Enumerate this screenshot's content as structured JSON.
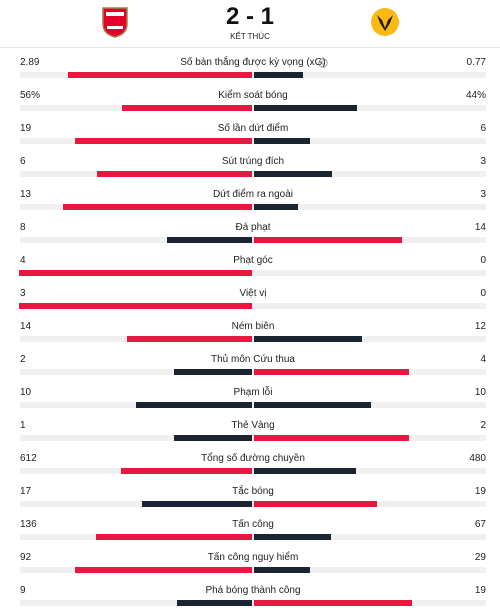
{
  "header": {
    "score": "2 - 1",
    "status": "KẾT THÚC"
  },
  "stats": [
    {
      "label": "Số bàn thắng được kỳ vọng (xG)",
      "home": 2.89,
      "away": 0.77
    },
    {
      "label": "Kiểm soát bóng",
      "home": {
        "value": 56,
        "label": "56%"
      },
      "away": {
        "value": 44,
        "label": "44%"
      }
    },
    {
      "label": "Số lần dứt điểm",
      "home": 19,
      "away": 6
    },
    {
      "label": "Sút trúng đích",
      "home": 6,
      "away": 3
    },
    {
      "label": "Dứt điểm ra ngoài",
      "home": 13,
      "away": 3
    },
    {
      "label": "Đá phạt",
      "home": 8,
      "away": 14
    },
    {
      "label": "Phạt góc",
      "home": 4,
      "away": 0
    },
    {
      "label": "Việt vị",
      "home": 3,
      "away": 0
    },
    {
      "label": "Ném biên",
      "home": 14,
      "away": 12
    },
    {
      "label": "Thủ môn Cứu thua",
      "home": 2,
      "away": 4
    },
    {
      "label": "Phạm lỗi",
      "home": 10,
      "away": 10
    },
    {
      "label": "Thẻ Vàng",
      "home": 1,
      "away": 2
    },
    {
      "label": "Tổng số đường chuyền",
      "home": 612,
      "away": 480
    },
    {
      "label": "Tắc bóng",
      "home": 17,
      "away": 19
    },
    {
      "label": "Tấn công",
      "home": 136,
      "away": 67
    },
    {
      "label": "Tấn công nguy hiểm",
      "home": 92,
      "away": 29
    },
    {
      "label": "Phá bóng thành công",
      "home": 9,
      "away": 19
    }
  ]
}
